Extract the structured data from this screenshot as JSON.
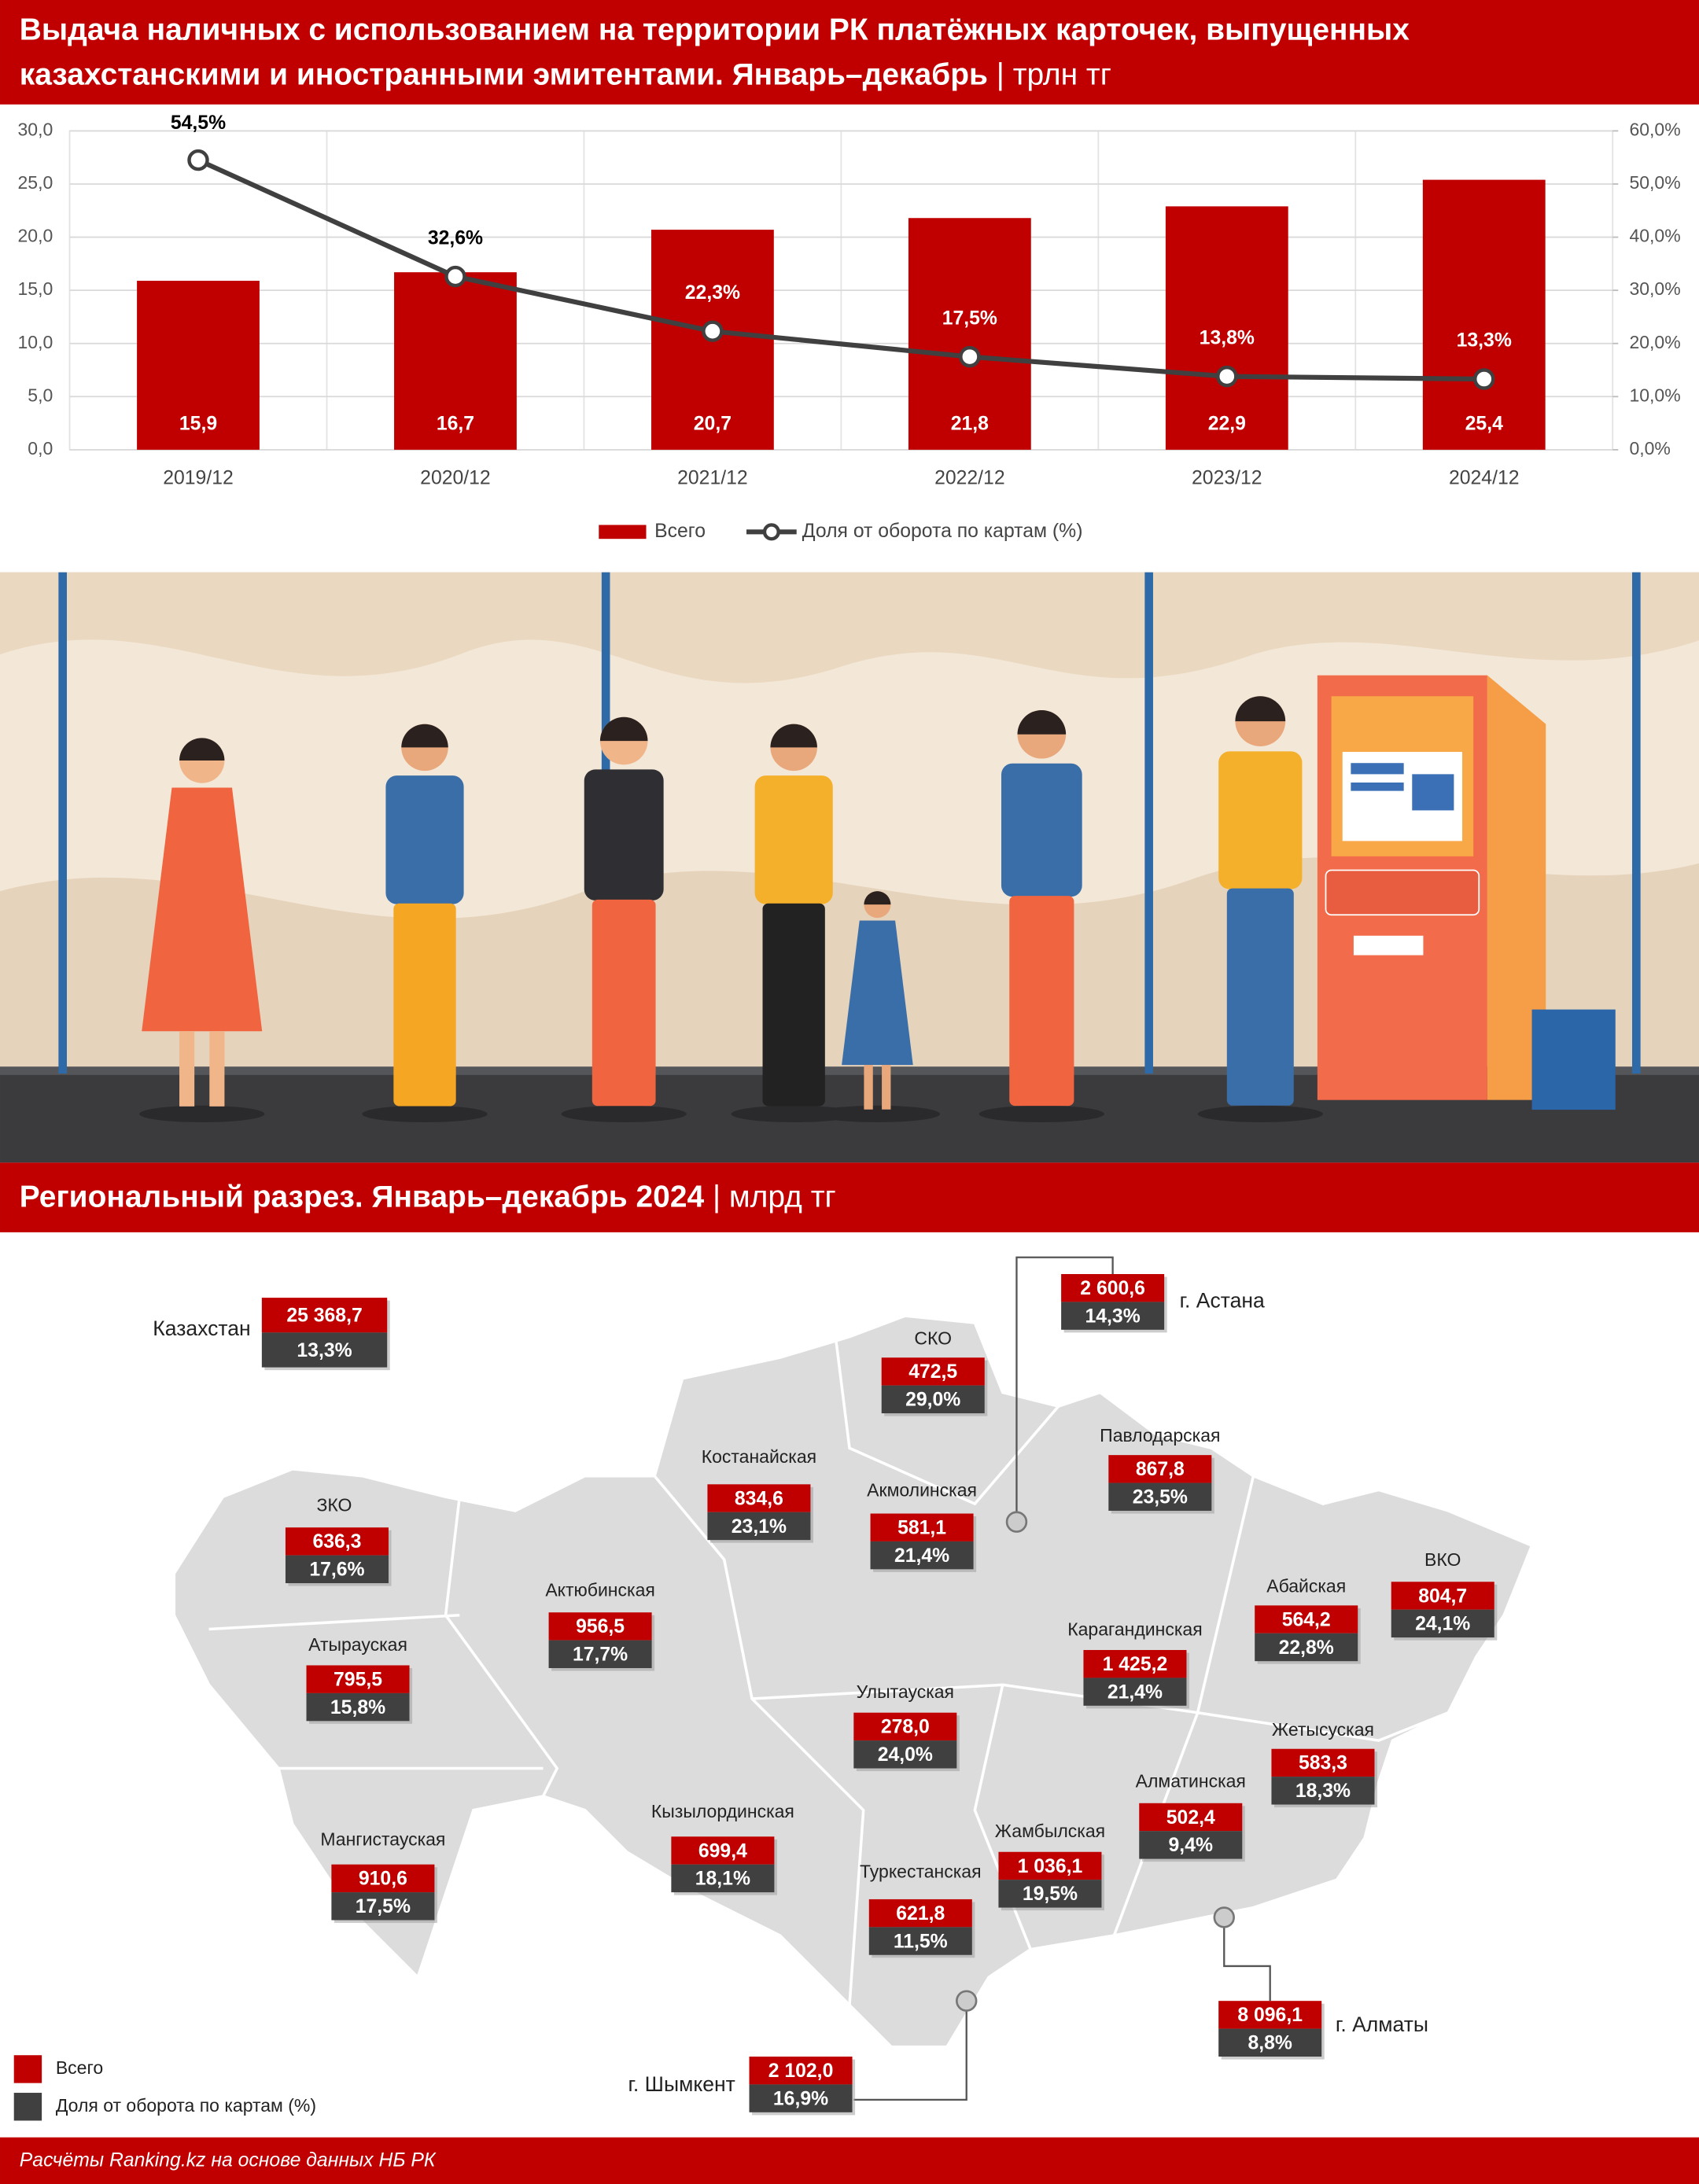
{
  "header": {
    "title": [
      "Выдача наличных с использованием на территории РК платёжных карточек, выпущенных",
      "казахстанскими и иностранными эмитентами. Январь–декабрь"
    ],
    "unit": "| трлн тг"
  },
  "chart_data": {
    "type": "bar",
    "categories": [
      "2019/12",
      "2020/12",
      "2021/12",
      "2022/12",
      "2023/12",
      "2024/12"
    ],
    "series": [
      {
        "name": "Всего",
        "type": "bar",
        "color": "#c00000",
        "values": [
          15.9,
          16.7,
          20.7,
          21.8,
          22.9,
          25.4
        ],
        "value_labels": [
          "15,9",
          "16,7",
          "20,7",
          "21,8",
          "22,9",
          "25,4"
        ]
      },
      {
        "name": "Доля от оборота по картам (%)",
        "type": "line",
        "axis": "y2",
        "color": "#404040",
        "values": [
          54.5,
          32.6,
          22.3,
          17.5,
          13.8,
          13.3
        ],
        "value_labels": [
          "54,5%",
          "32,6%",
          "22,3%",
          "17,5%",
          "13,8%",
          "13,3%"
        ]
      }
    ],
    "ylim": [
      0,
      30
    ],
    "yticks": [
      {
        "value": 0,
        "label": "0,0"
      },
      {
        "value": 5,
        "label": "5,0"
      },
      {
        "value": 10,
        "label": "10,0"
      },
      {
        "value": 15,
        "label": "15,0"
      },
      {
        "value": 20,
        "label": "20,0"
      },
      {
        "value": 25,
        "label": "25,0"
      },
      {
        "value": 30,
        "label": "30,0"
      }
    ],
    "y2lim": [
      0,
      60
    ],
    "y2ticks": [
      {
        "value": 0,
        "label": "0,0%"
      },
      {
        "value": 10,
        "label": "10,0%"
      },
      {
        "value": 20,
        "label": "20,0%"
      },
      {
        "value": 30,
        "label": "30,0%"
      },
      {
        "value": 40,
        "label": "40,0%"
      },
      {
        "value": 50,
        "label": "50,0%"
      },
      {
        "value": 60,
        "label": "60,0%"
      }
    ],
    "grid": true,
    "legend": "bottom"
  },
  "map": {
    "title": "Региональный разрез. Январь–декабрь 2024",
    "unit": "| млрд тг",
    "regions": [
      {
        "name": "Казахстан",
        "total": "25 368,7",
        "share": "13,3%"
      },
      {
        "name": "г. Астана",
        "total": "2 600,6",
        "share": "14,3%"
      },
      {
        "name": "СКО",
        "total": "472,5",
        "share": "29,0%"
      },
      {
        "name": "Павлодарская",
        "total": "867,8",
        "share": "23,5%"
      },
      {
        "name": "Костанайская",
        "total": "834,6",
        "share": "23,1%"
      },
      {
        "name": "Акмолинская",
        "total": "581,1",
        "share": "21,4%"
      },
      {
        "name": "ЗКО",
        "total": "636,3",
        "share": "17,6%"
      },
      {
        "name": "Актюбинская",
        "total": "956,5",
        "share": "17,7%"
      },
      {
        "name": "Абайская",
        "total": "564,2",
        "share": "22,8%"
      },
      {
        "name": "ВКО",
        "total": "804,7",
        "share": "24,1%"
      },
      {
        "name": "Атырауская",
        "total": "795,5",
        "share": "15,8%"
      },
      {
        "name": "Карагандинская",
        "total": "1 425,2",
        "share": "21,4%"
      },
      {
        "name": "Улытауская",
        "total": "278,0",
        "share": "24,0%"
      },
      {
        "name": "Жетысуская",
        "total": "583,3",
        "share": "18,3%"
      },
      {
        "name": "Алматинская",
        "total": "502,4",
        "share": "9,4%"
      },
      {
        "name": "Кызылординская",
        "total": "699,4",
        "share": "18,1%"
      },
      {
        "name": "Жамбылская",
        "total": "1 036,1",
        "share": "19,5%"
      },
      {
        "name": "Мангистауская",
        "total": "910,6",
        "share": "17,5%"
      },
      {
        "name": "Туркестанская",
        "total": "621,8",
        "share": "11,5%"
      },
      {
        "name": "г. Алматы",
        "total": "8 096,1",
        "share": "8,8%"
      },
      {
        "name": "г. Шымкент",
        "total": "2 102,0",
        "share": "16,9%"
      }
    ]
  },
  "footer": {
    "source": "Расчёты Ranking.kz на основе данных НБ РК"
  }
}
